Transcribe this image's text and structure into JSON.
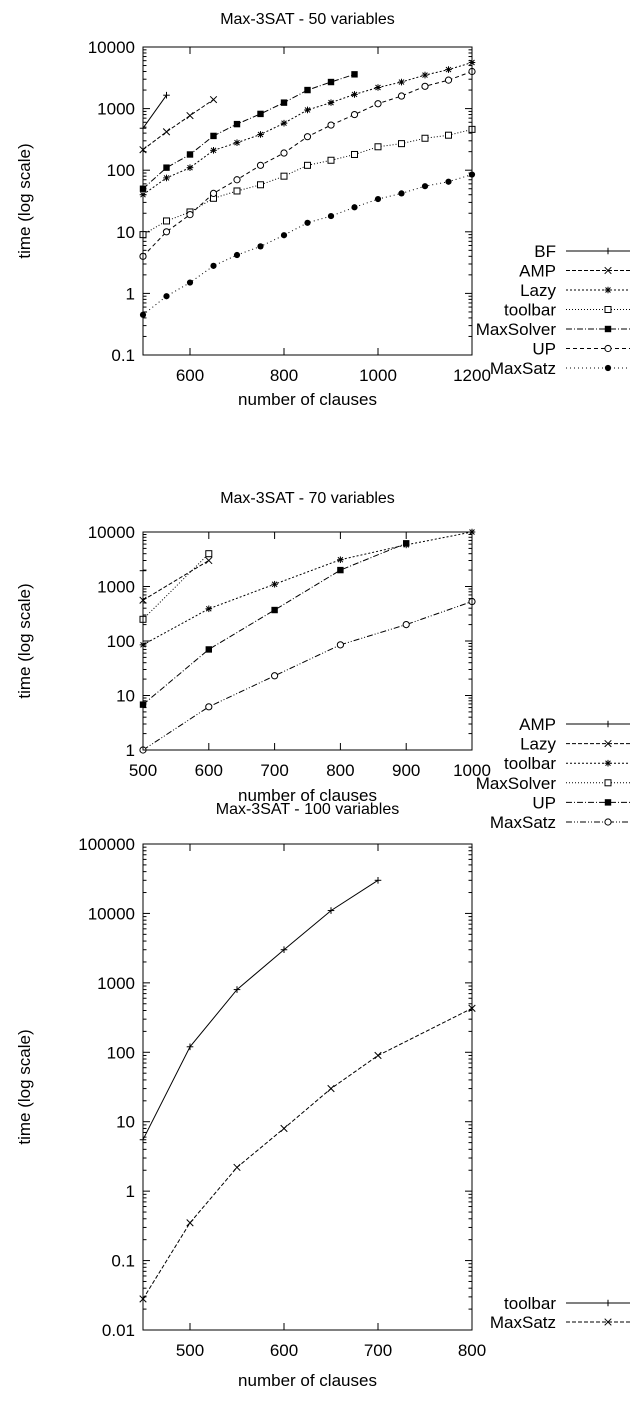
{
  "chart_data": [
    {
      "type": "line",
      "title": "Max-3SAT - 50 variables",
      "xlabel": "number of clauses",
      "ylabel": "time (log scale)",
      "xlim": [
        500,
        1200
      ],
      "ylim": [
        0.1,
        10000
      ],
      "yscale": "log",
      "xticks": [
        600,
        800,
        1000,
        1200
      ],
      "yticks": [
        0.1,
        1,
        10,
        100,
        1000,
        10000
      ],
      "ytick_labels": [
        "0.1",
        "1",
        "10",
        "100",
        "1000",
        "10000"
      ],
      "grid": false,
      "legend_position": "right",
      "series": [
        {
          "name": "BF",
          "marker": "plus",
          "dash": "",
          "x": [
            500,
            550
          ],
          "y": [
            480,
            1650
          ]
        },
        {
          "name": "AMP",
          "marker": "cross",
          "dash": "4,2",
          "x": [
            500,
            550,
            600,
            650
          ],
          "y": [
            215,
            420,
            770,
            1400
          ]
        },
        {
          "name": "Lazy",
          "marker": "star",
          "dash": "2,2",
          "x": [
            500,
            550,
            600,
            650,
            700,
            750,
            800,
            850,
            900,
            950,
            1000,
            1050,
            1100,
            1150,
            1200
          ],
          "y": [
            40,
            75,
            110,
            210,
            280,
            380,
            580,
            950,
            1250,
            1700,
            2200,
            2700,
            3500,
            4300,
            5600
          ]
        },
        {
          "name": "toolbar",
          "marker": "square-open",
          "dash": "1,2",
          "x": [
            500,
            550,
            600,
            650,
            700,
            750,
            800,
            850,
            900,
            950,
            1000,
            1050,
            1100,
            1150,
            1200
          ],
          "y": [
            9,
            15,
            21,
            35,
            46,
            58,
            80,
            120,
            145,
            180,
            240,
            270,
            330,
            370,
            460
          ]
        },
        {
          "name": "MaxSolver",
          "marker": "square-filled",
          "dash": "6,2,1,2",
          "x": [
            500,
            550,
            600,
            650,
            700,
            750,
            800,
            850,
            900,
            950
          ],
          "y": [
            50,
            110,
            180,
            360,
            560,
            820,
            1250,
            2000,
            2700,
            3600
          ]
        },
        {
          "name": "UP",
          "marker": "circle-open",
          "dash": "4,3",
          "x": [
            500,
            550,
            600,
            650,
            700,
            750,
            800,
            850,
            900,
            950,
            1000,
            1050,
            1100,
            1150,
            1200
          ],
          "y": [
            4,
            10,
            19,
            42,
            70,
            120,
            190,
            350,
            540,
            800,
            1200,
            1600,
            2300,
            2900,
            4000
          ]
        },
        {
          "name": "MaxSatz",
          "marker": "circle-filled",
          "dash": "1,3",
          "x": [
            500,
            550,
            600,
            650,
            700,
            750,
            800,
            850,
            900,
            950,
            1000,
            1050,
            1100,
            1150,
            1200
          ],
          "y": [
            0.45,
            0.9,
            1.5,
            2.8,
            4.2,
            5.8,
            8.8,
            14,
            18,
            25,
            34,
            42,
            55,
            65,
            85
          ]
        }
      ]
    },
    {
      "type": "line",
      "title": "Max-3SAT - 70 variables",
      "xlabel": "number of clauses",
      "ylabel": "time (log scale)",
      "xlim": [
        500,
        1000
      ],
      "ylim": [
        1,
        10000
      ],
      "yscale": "log",
      "xticks": [
        500,
        600,
        700,
        800,
        900,
        1000
      ],
      "yticks": [
        1,
        10,
        100,
        1000,
        10000
      ],
      "ytick_labels": [
        "1",
        "10",
        "100",
        "1000",
        "10000"
      ],
      "grid": false,
      "legend_position": "right",
      "series": [
        {
          "name": "AMP",
          "marker": "plus",
          "dash": "",
          "x": [
            500
          ],
          "y": [
            1950
          ]
        },
        {
          "name": "Lazy",
          "marker": "cross",
          "dash": "4,2",
          "x": [
            500,
            600
          ],
          "y": [
            560,
            3000
          ]
        },
        {
          "name": "toolbar",
          "marker": "star",
          "dash": "2,2",
          "x": [
            500,
            600,
            700,
            800,
            900,
            1000
          ],
          "y": [
            85,
            390,
            1100,
            3100,
            5800,
            10000
          ]
        },
        {
          "name": "MaxSolver",
          "marker": "square-open",
          "dash": "1,2",
          "x": [
            500,
            600
          ],
          "y": [
            250,
            4000
          ]
        },
        {
          "name": "UP",
          "marker": "square-filled",
          "dash": "6,2,1,2",
          "x": [
            500,
            600,
            700,
            800,
            900
          ],
          "y": [
            6.8,
            70,
            370,
            2000,
            6200
          ]
        },
        {
          "name": "MaxSatz",
          "marker": "circle-open",
          "dash": "6,2,1,2,1,2",
          "x": [
            500,
            600,
            700,
            800,
            900,
            1000
          ],
          "y": [
            1,
            6.2,
            23,
            85,
            200,
            530
          ]
        }
      ]
    },
    {
      "type": "line",
      "title": "Max-3SAT - 100 variables",
      "xlabel": "number of clauses",
      "ylabel": "time (log scale)",
      "xlim": [
        450,
        800
      ],
      "ylim": [
        0.01,
        100000
      ],
      "yscale": "log",
      "xticks": [
        500,
        600,
        700,
        800
      ],
      "yticks": [
        0.01,
        0.1,
        1,
        10,
        100,
        1000,
        10000,
        100000
      ],
      "ytick_labels": [
        "0.01",
        "0.1",
        "1",
        "10",
        "100",
        "1000",
        "10000",
        "100000"
      ],
      "grid": false,
      "legend_position": "right",
      "series": [
        {
          "name": "toolbar",
          "marker": "plus",
          "dash": "",
          "x": [
            450,
            500,
            550,
            600,
            650,
            700
          ],
          "y": [
            5.5,
            120,
            800,
            3000,
            11000,
            30000
          ]
        },
        {
          "name": "MaxSatz",
          "marker": "cross",
          "dash": "4,2",
          "x": [
            450,
            500,
            550,
            600,
            650,
            700,
            800
          ],
          "y": [
            0.028,
            0.35,
            2.2,
            8,
            30,
            90,
            430
          ]
        }
      ]
    }
  ]
}
